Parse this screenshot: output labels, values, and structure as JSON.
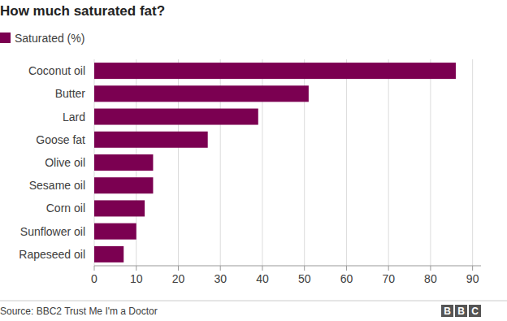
{
  "chart_data": {
    "type": "bar",
    "title": "How much saturated fat?",
    "orientation": "horizontal",
    "categories": [
      "Coconut oil",
      "Butter",
      "Lard",
      "Goose fat",
      "Olive oil",
      "Sesame oil",
      "Corn oil",
      "Sunflower oil",
      "Rapeseed oil"
    ],
    "series": [
      {
        "name": "Saturated (%)",
        "color": "#7b0051",
        "values": [
          86,
          51,
          39,
          27,
          14,
          14,
          12,
          10,
          7
        ]
      }
    ],
    "xlim": [
      0,
      92
    ],
    "xticks": [
      0,
      10,
      20,
      30,
      40,
      50,
      60,
      70,
      80,
      90
    ],
    "grid": true,
    "legend": "top-left",
    "source": "Source: BBC2 Trust Me I'm a Doctor",
    "logo": [
      "B",
      "B",
      "C"
    ]
  }
}
